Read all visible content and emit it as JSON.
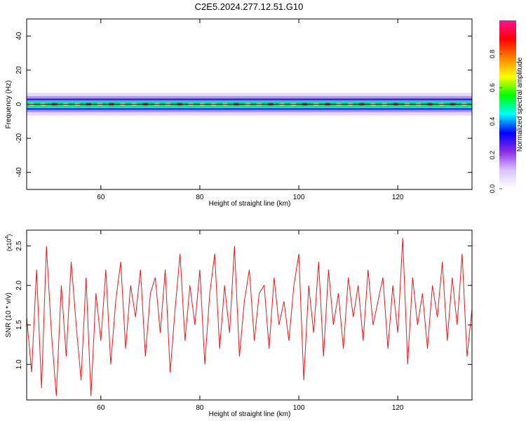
{
  "title": "C2E5.2024.277.12.51.G10",
  "chart_data": [
    {
      "type": "heatmap",
      "xlabel": "Height of straight line (km)",
      "ylabel": "Frequency (Hz)",
      "xlim": [
        45,
        135
      ],
      "ylim": [
        -50,
        50
      ],
      "x_ticks": [
        60,
        80,
        100,
        120
      ],
      "y_ticks": [
        40,
        20,
        0,
        -20,
        -40
      ],
      "band_center_hz": 0,
      "band_halfwidth_hz": 3.5,
      "colorbar": {
        "label": "Normalized spectral amplitude",
        "range": [
          0,
          1
        ],
        "ticks": [
          "0.0",
          "0.2",
          "0.4",
          "0.6",
          "0.8"
        ],
        "colors": [
          "#ffffff",
          "#d9c3ff",
          "#8a2be2",
          "#0000ff",
          "#00ffff",
          "#00ff00",
          "#ffff00",
          "#ff8000",
          "#ff0000",
          "#ff1493"
        ]
      }
    },
    {
      "type": "line",
      "xlabel": "Height of straight line (km)",
      "ylabel": "SNR (10 * v/v)",
      "y_multiplier": "(x10",
      "y_multiplier_exp": "4",
      "y_multiplier_close": ")",
      "xlim": [
        45,
        135
      ],
      "ylim": [
        0.55,
        2.7
      ],
      "x_ticks": [
        60,
        80,
        100,
        120
      ],
      "y_ticks": [
        "1.0",
        "1.5",
        "2.0",
        "2.5"
      ],
      "line_color": "#e8191c",
      "series": [
        {
          "x": [
            45,
            46,
            47,
            48,
            49,
            50,
            51,
            52,
            53,
            54,
            55,
            56,
            57,
            58,
            59,
            60,
            61,
            62,
            63,
            64,
            65,
            66,
            67,
            68,
            69,
            70,
            71,
            72,
            73,
            74,
            75,
            76,
            77,
            78,
            79,
            80,
            81,
            82,
            83,
            84,
            85,
            86,
            87,
            88,
            89,
            90,
            91,
            92,
            93,
            94,
            95,
            96,
            97,
            98,
            99,
            100,
            101,
            102,
            103,
            104,
            105,
            106,
            107,
            108,
            109,
            110,
            111,
            112,
            113,
            114,
            115,
            116,
            117,
            118,
            119,
            120,
            121,
            122,
            123,
            124,
            125,
            126,
            127,
            128,
            129,
            130,
            131,
            132,
            133,
            134,
            135
          ],
          "values": [
            1.6,
            0.9,
            2.2,
            0.7,
            2.5,
            1.4,
            0.6,
            2.0,
            1.1,
            2.3,
            1.5,
            0.8,
            2.1,
            0.6,
            1.9,
            1.3,
            2.2,
            1.0,
            1.8,
            2.3,
            1.2,
            2.0,
            1.6,
            2.2,
            1.1,
            1.9,
            2.1,
            1.4,
            2.2,
            0.9,
            1.7,
            2.4,
            1.3,
            2.0,
            1.5,
            2.2,
            1.0,
            1.9,
            2.4,
            1.2,
            2.0,
            1.4,
            2.5,
            1.1,
            1.8,
            2.2,
            1.3,
            1.9,
            2.0,
            1.2,
            2.1,
            1.5,
            1.8,
            1.3,
            2.0,
            2.4,
            0.8,
            2.0,
            1.4,
            2.3,
            1.1,
            2.2,
            1.5,
            1.9,
            1.2,
            2.1,
            1.6,
            2.0,
            1.3,
            2.2,
            1.5,
            1.8,
            2.1,
            1.2,
            2.0,
            1.4,
            2.6,
            1.0,
            2.1,
            1.5,
            1.9,
            1.2,
            2.0,
            1.6,
            2.3,
            1.3,
            2.1,
            1.5,
            2.4,
            1.1,
            1.7
          ]
        }
      ]
    }
  ]
}
